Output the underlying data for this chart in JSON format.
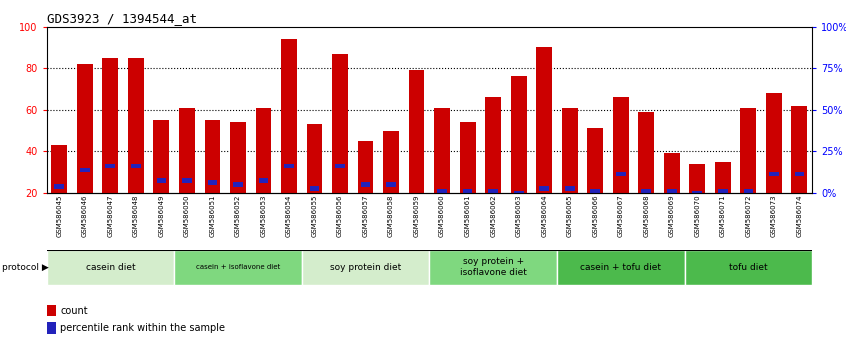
{
  "title": "GDS3923 / 1394544_at",
  "samples": [
    "GSM586045",
    "GSM586046",
    "GSM586047",
    "GSM586048",
    "GSM586049",
    "GSM586050",
    "GSM586051",
    "GSM586052",
    "GSM586053",
    "GSM586054",
    "GSM586055",
    "GSM586056",
    "GSM586057",
    "GSM586058",
    "GSM586059",
    "GSM586060",
    "GSM586061",
    "GSM586062",
    "GSM586063",
    "GSM586064",
    "GSM586065",
    "GSM586066",
    "GSM586067",
    "GSM586068",
    "GSM586069",
    "GSM586070",
    "GSM586071",
    "GSM586072",
    "GSM586073",
    "GSM586074"
  ],
  "red_values": [
    43,
    82,
    85,
    85,
    55,
    61,
    55,
    54,
    61,
    94,
    53,
    87,
    45,
    50,
    79,
    61,
    54,
    66,
    76,
    90,
    61,
    51,
    66,
    59,
    39,
    34,
    35,
    61,
    68,
    62
  ],
  "blue_values": [
    23,
    31,
    33,
    33,
    26,
    26,
    25,
    24,
    26,
    33,
    22,
    33,
    24,
    24,
    19,
    21,
    21,
    21,
    20,
    22,
    22,
    21,
    29,
    21,
    21,
    20,
    21,
    21,
    29,
    29
  ],
  "protocol_labels": [
    "casein diet",
    "casein + isoflavone diet",
    "soy protein diet",
    "soy protein +\nisoflavone diet",
    "casein + tofu diet",
    "tofu diet"
  ],
  "protocol_starts": [
    0,
    5,
    10,
    15,
    20,
    25
  ],
  "protocol_ends": [
    5,
    10,
    15,
    20,
    25,
    30
  ],
  "protocol_colors": [
    "#d4edcc",
    "#7fd87f",
    "#d4edcc",
    "#7fd87f",
    "#4cba4c",
    "#4cba4c"
  ],
  "bar_color": "#cc0000",
  "blue_color": "#2222bb",
  "ymin": 20,
  "ymax": 100,
  "legend_count": "count",
  "legend_pct": "percentile rank within the sample"
}
